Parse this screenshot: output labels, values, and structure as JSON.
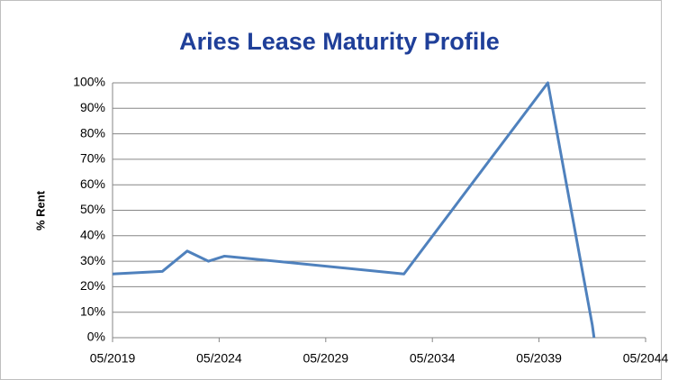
{
  "chart_data": {
    "type": "line",
    "title": "Aries Lease Maturity Profile",
    "y_label": "% Rent",
    "x": [
      "2019-05",
      "2021-09",
      "2022-11",
      "2023-11",
      "2024-08",
      "2033-01",
      "2039-10",
      "2041-11",
      "2041-12"
    ],
    "series": [
      {
        "name": "% Rent",
        "color": "#4f81bd",
        "values": [
          25,
          26,
          34,
          30,
          32,
          25,
          100,
          5,
          0
        ]
      }
    ],
    "xlim": [
      "2019-05",
      "2044-05"
    ],
    "xticks": [
      {
        "value": "2019-05",
        "label": "05/2019"
      },
      {
        "value": "2024-05",
        "label": "05/2024"
      },
      {
        "value": "2029-05",
        "label": "05/2029"
      },
      {
        "value": "2034-05",
        "label": "05/2034"
      },
      {
        "value": "2039-05",
        "label": "05/2039"
      },
      {
        "value": "2044-05",
        "label": "05/2044"
      }
    ],
    "ylim": [
      0,
      100
    ],
    "yticks": [
      {
        "value": 0,
        "label": "0%"
      },
      {
        "value": 10,
        "label": "10%"
      },
      {
        "value": 20,
        "label": "20%"
      },
      {
        "value": 30,
        "label": "30%"
      },
      {
        "value": 40,
        "label": "40%"
      },
      {
        "value": 50,
        "label": "50%"
      },
      {
        "value": 60,
        "label": "60%"
      },
      {
        "value": 70,
        "label": "70%"
      },
      {
        "value": 80,
        "label": "80%"
      },
      {
        "value": 90,
        "label": "90%"
      },
      {
        "value": 100,
        "label": "100%"
      }
    ],
    "grid": true
  }
}
